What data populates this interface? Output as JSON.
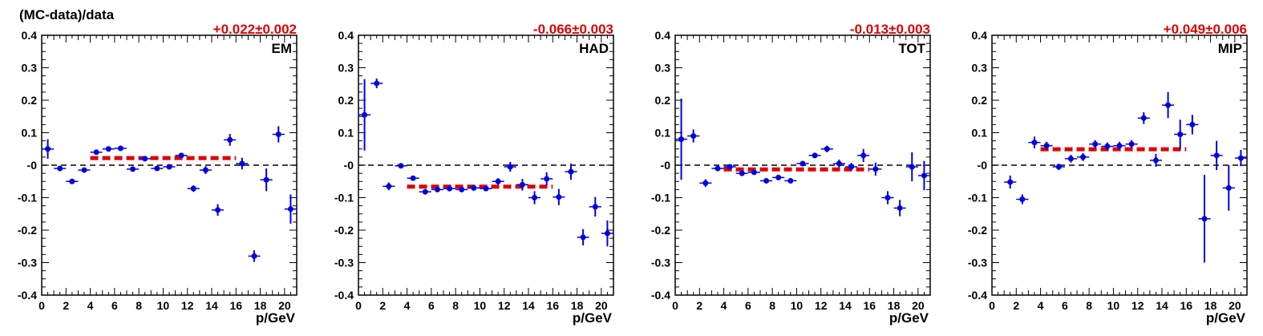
{
  "figure": {
    "ylabel": "(MC-data)/data"
  },
  "chart_data": [
    {
      "type": "scatter",
      "panel_label": "EM",
      "fit_label": "+0.022±0.002",
      "xlabel": "p/GeV",
      "xlim": [
        0,
        21
      ],
      "ylim": [
        -0.4,
        0.4
      ],
      "x_ticks": [
        0,
        2,
        4,
        6,
        8,
        10,
        12,
        14,
        16,
        18,
        20
      ],
      "y_ticks": [
        -0.4,
        -0.3,
        -0.2,
        -0.1,
        0,
        0.1,
        0.2,
        0.3,
        0.4
      ],
      "y_tick_labels": [
        "-0.4",
        "-0.3",
        "-0.2",
        "-0.1",
        "-0",
        "0.1",
        "0.2",
        "0.3",
        "0.4"
      ],
      "reference_line": 0,
      "fit": {
        "value": 0.022,
        "x_range": [
          4,
          16
        ],
        "color": "#e00000"
      },
      "marker_color": "#0000e0",
      "points": [
        {
          "x": 0.5,
          "y": 0.05,
          "err": 0.03
        },
        {
          "x": 1.5,
          "y": -0.01,
          "err": 0.008
        },
        {
          "x": 2.5,
          "y": -0.05,
          "err": 0.005
        },
        {
          "x": 3.5,
          "y": -0.015,
          "err": 0.005
        },
        {
          "x": 4.5,
          "y": 0.04,
          "err": 0.005
        },
        {
          "x": 5.5,
          "y": 0.05,
          "err": 0.005
        },
        {
          "x": 6.5,
          "y": 0.052,
          "err": 0.005
        },
        {
          "x": 7.5,
          "y": -0.012,
          "err": 0.005
        },
        {
          "x": 8.5,
          "y": 0.02,
          "err": 0.005
        },
        {
          "x": 9.5,
          "y": -0.01,
          "err": 0.005
        },
        {
          "x": 10.5,
          "y": -0.005,
          "err": 0.005
        },
        {
          "x": 11.5,
          "y": 0.03,
          "err": 0.007
        },
        {
          "x": 12.5,
          "y": -0.072,
          "err": 0.01
        },
        {
          "x": 13.5,
          "y": -0.015,
          "err": 0.012
        },
        {
          "x": 14.5,
          "y": -0.138,
          "err": 0.018
        },
        {
          "x": 15.5,
          "y": 0.078,
          "err": 0.018
        },
        {
          "x": 16.5,
          "y": 0.005,
          "err": 0.018
        },
        {
          "x": 17.5,
          "y": -0.28,
          "err": 0.018
        },
        {
          "x": 18.5,
          "y": -0.045,
          "err": 0.035
        },
        {
          "x": 19.5,
          "y": 0.095,
          "err": 0.025
        },
        {
          "x": 20.5,
          "y": -0.135,
          "err": 0.045
        }
      ]
    },
    {
      "type": "scatter",
      "panel_label": "HAD",
      "fit_label": "-0.066±0.003",
      "xlabel": "p/GeV",
      "xlim": [
        0,
        21
      ],
      "ylim": [
        -0.4,
        0.4
      ],
      "x_ticks": [
        0,
        2,
        4,
        6,
        8,
        10,
        12,
        14,
        16,
        18,
        20
      ],
      "y_ticks": [
        -0.4,
        -0.3,
        -0.2,
        -0.1,
        0,
        0.1,
        0.2,
        0.3,
        0.4
      ],
      "y_tick_labels": [
        "-0.4",
        "-0.3",
        "-0.2",
        "-0.1",
        "-0",
        "0.1",
        "0.2",
        "0.3",
        "0.4"
      ],
      "reference_line": 0,
      "fit": {
        "value": -0.066,
        "x_range": [
          4,
          16
        ],
        "color": "#e00000"
      },
      "marker_color": "#0000e0",
      "points": [
        {
          "x": 0.5,
          "y": 0.155,
          "err": 0.11
        },
        {
          "x": 1.5,
          "y": 0.252,
          "err": 0.015
        },
        {
          "x": 2.5,
          "y": -0.065,
          "err": 0.012
        },
        {
          "x": 3.5,
          "y": -0.002,
          "err": 0.008
        },
        {
          "x": 4.5,
          "y": -0.04,
          "err": 0.006
        },
        {
          "x": 5.5,
          "y": -0.082,
          "err": 0.005
        },
        {
          "x": 6.5,
          "y": -0.075,
          "err": 0.005
        },
        {
          "x": 7.5,
          "y": -0.072,
          "err": 0.005
        },
        {
          "x": 8.5,
          "y": -0.075,
          "err": 0.005
        },
        {
          "x": 9.5,
          "y": -0.07,
          "err": 0.006
        },
        {
          "x": 10.5,
          "y": -0.072,
          "err": 0.008
        },
        {
          "x": 11.5,
          "y": -0.05,
          "err": 0.01
        },
        {
          "x": 12.5,
          "y": -0.005,
          "err": 0.015
        },
        {
          "x": 13.5,
          "y": -0.06,
          "err": 0.018
        },
        {
          "x": 14.5,
          "y": -0.1,
          "err": 0.02
        },
        {
          "x": 15.5,
          "y": -0.042,
          "err": 0.02
        },
        {
          "x": 16.5,
          "y": -0.098,
          "err": 0.025
        },
        {
          "x": 17.5,
          "y": -0.02,
          "err": 0.025
        },
        {
          "x": 18.5,
          "y": -0.222,
          "err": 0.025
        },
        {
          "x": 19.5,
          "y": -0.128,
          "err": 0.03
        },
        {
          "x": 20.5,
          "y": -0.21,
          "err": 0.04
        }
      ]
    },
    {
      "type": "scatter",
      "panel_label": "TOT",
      "fit_label": "-0.013±0.003",
      "xlabel": "p/GeV",
      "xlim": [
        0,
        21
      ],
      "ylim": [
        -0.4,
        0.4
      ],
      "x_ticks": [
        0,
        2,
        4,
        6,
        8,
        10,
        12,
        14,
        16,
        18,
        20
      ],
      "y_ticks": [
        -0.4,
        -0.3,
        -0.2,
        -0.1,
        0,
        0.1,
        0.2,
        0.3,
        0.4
      ],
      "y_tick_labels": [
        "-0.4",
        "-0.3",
        "-0.2",
        "-0.1",
        "-0",
        "0.1",
        "0.2",
        "0.3",
        "0.4"
      ],
      "reference_line": 0,
      "fit": {
        "value": -0.013,
        "x_range": [
          4,
          16
        ],
        "color": "#e00000"
      },
      "marker_color": "#0000e0",
      "points": [
        {
          "x": 0.5,
          "y": 0.08,
          "err": 0.125
        },
        {
          "x": 1.5,
          "y": 0.09,
          "err": 0.02
        },
        {
          "x": 2.5,
          "y": -0.055,
          "err": 0.012
        },
        {
          "x": 3.5,
          "y": -0.01,
          "err": 0.008
        },
        {
          "x": 4.5,
          "y": -0.005,
          "err": 0.006
        },
        {
          "x": 5.5,
          "y": -0.025,
          "err": 0.005
        },
        {
          "x": 6.5,
          "y": -0.022,
          "err": 0.005
        },
        {
          "x": 7.5,
          "y": -0.048,
          "err": 0.005
        },
        {
          "x": 8.5,
          "y": -0.038,
          "err": 0.005
        },
        {
          "x": 9.5,
          "y": -0.048,
          "err": 0.006
        },
        {
          "x": 10.5,
          "y": 0.005,
          "err": 0.007
        },
        {
          "x": 11.5,
          "y": 0.03,
          "err": 0.008
        },
        {
          "x": 12.5,
          "y": 0.05,
          "err": 0.01
        },
        {
          "x": 13.5,
          "y": 0.005,
          "err": 0.012
        },
        {
          "x": 14.5,
          "y": -0.005,
          "err": 0.012
        },
        {
          "x": 15.5,
          "y": 0.03,
          "err": 0.02
        },
        {
          "x": 16.5,
          "y": -0.012,
          "err": 0.02
        },
        {
          "x": 17.5,
          "y": -0.1,
          "err": 0.02
        },
        {
          "x": 18.5,
          "y": -0.132,
          "err": 0.025
        },
        {
          "x": 19.5,
          "y": -0.005,
          "err": 0.045
        },
        {
          "x": 20.5,
          "y": -0.032,
          "err": 0.045
        }
      ]
    },
    {
      "type": "scatter",
      "panel_label": "MIP",
      "fit_label": "+0.049±0.006",
      "xlabel": "p/GeV",
      "xlim": [
        0,
        21
      ],
      "ylim": [
        -0.4,
        0.4
      ],
      "x_ticks": [
        0,
        2,
        4,
        6,
        8,
        10,
        12,
        14,
        16,
        18,
        20
      ],
      "y_ticks": [
        -0.4,
        -0.3,
        -0.2,
        -0.1,
        0,
        0.1,
        0.2,
        0.3,
        0.4
      ],
      "y_tick_labels": [
        "-0.4",
        "-0.3",
        "-0.2",
        "-0.1",
        "-0",
        "0.1",
        "0.2",
        "0.3",
        "0.4"
      ],
      "reference_line": 0,
      "fit": {
        "value": 0.049,
        "x_range": [
          4,
          16
        ],
        "color": "#e00000"
      },
      "marker_color": "#0000e0",
      "points": [
        {
          "x": 1.5,
          "y": -0.052,
          "err": 0.02
        },
        {
          "x": 2.5,
          "y": -0.105,
          "err": 0.015
        },
        {
          "x": 3.5,
          "y": 0.07,
          "err": 0.018
        },
        {
          "x": 4.5,
          "y": 0.06,
          "err": 0.012
        },
        {
          "x": 5.5,
          "y": -0.005,
          "err": 0.01
        },
        {
          "x": 6.5,
          "y": 0.02,
          "err": 0.012
        },
        {
          "x": 7.5,
          "y": 0.025,
          "err": 0.012
        },
        {
          "x": 8.5,
          "y": 0.065,
          "err": 0.012
        },
        {
          "x": 9.5,
          "y": 0.058,
          "err": 0.012
        },
        {
          "x": 10.5,
          "y": 0.06,
          "err": 0.012
        },
        {
          "x": 11.5,
          "y": 0.065,
          "err": 0.012
        },
        {
          "x": 12.5,
          "y": 0.145,
          "err": 0.018
        },
        {
          "x": 13.5,
          "y": 0.015,
          "err": 0.02
        },
        {
          "x": 14.5,
          "y": 0.185,
          "err": 0.04
        },
        {
          "x": 15.5,
          "y": 0.095,
          "err": 0.045
        },
        {
          "x": 16.5,
          "y": 0.125,
          "err": 0.03
        },
        {
          "x": 17.5,
          "y": -0.165,
          "err": 0.135
        },
        {
          "x": 18.5,
          "y": 0.03,
          "err": 0.045
        },
        {
          "x": 19.5,
          "y": -0.07,
          "err": 0.07
        },
        {
          "x": 20.5,
          "y": 0.022,
          "err": 0.025
        }
      ]
    }
  ]
}
